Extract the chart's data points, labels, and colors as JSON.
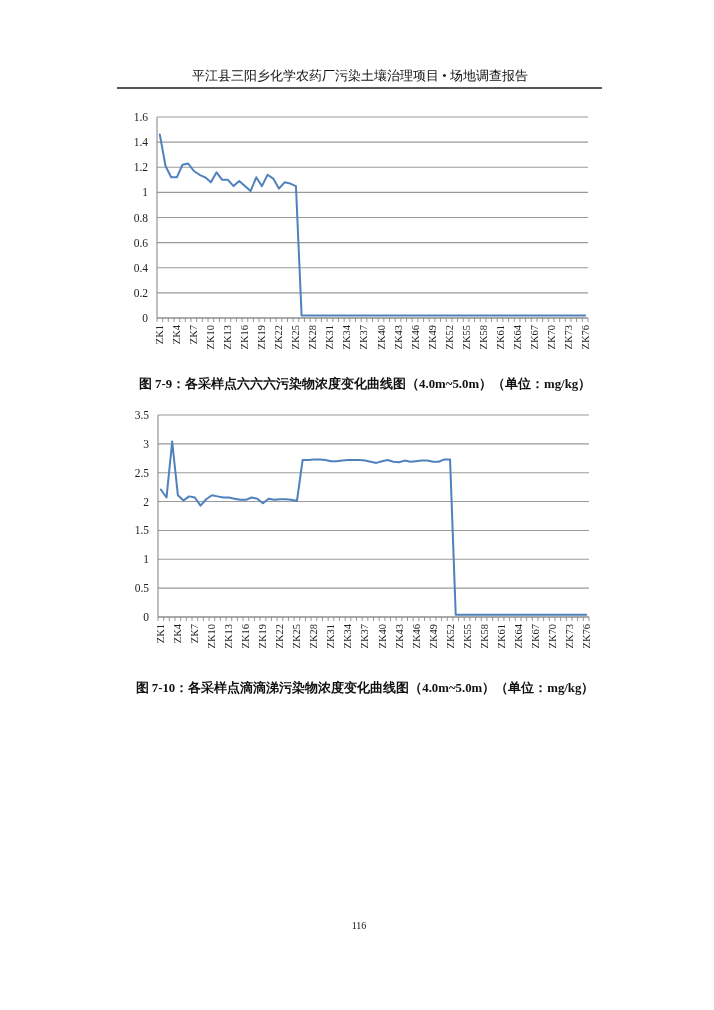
{
  "chart_data": [
    {
      "type": "line",
      "title": "图 7-9：各采样点六六六污染物浓度变化曲线图（4.0m~5.0m）（单位：mg/kg）",
      "annotations": [
        "平江县三阳乡化学农药厂污染土壤治理项目 • 场地调查报告"
      ],
      "categories": [
        "ZK1",
        null,
        null,
        "ZK4",
        null,
        null,
        "ZK7",
        null,
        null,
        "ZK10",
        null,
        null,
        "ZK13",
        null,
        null,
        "ZK16",
        null,
        null,
        "ZK19",
        null,
        null,
        "ZK22",
        null,
        null,
        "ZK25",
        null,
        null,
        "ZK28",
        null,
        null,
        "ZK31",
        null,
        null,
        "ZK34",
        null,
        null,
        "ZK37",
        null,
        null,
        "ZK40",
        null,
        null,
        "ZK43",
        null,
        null,
        "ZK46",
        null,
        null,
        "ZK49",
        null,
        null,
        "ZK52",
        null,
        null,
        "ZK55",
        null,
        null,
        "ZK58",
        null,
        null,
        "ZK61",
        null,
        null,
        "ZK64",
        null,
        null,
        "ZK67",
        null,
        null,
        "ZK70",
        null,
        null,
        "ZK73",
        null,
        null,
        "ZK76"
      ],
      "values": [
        1.46,
        1.21,
        1.12,
        1.12,
        1.22,
        1.23,
        1.17,
        1.14,
        1.12,
        1.08,
        1.16,
        1.1,
        1.1,
        1.05,
        1.09,
        1.05,
        1.01,
        1.12,
        1.05,
        1.14,
        1.11,
        1.03,
        1.08,
        1.07,
        1.05,
        0.02,
        0.02,
        0.02,
        0.02,
        0.02,
        0.02,
        0.02,
        0.02,
        0.02,
        0.02,
        0.02,
        0.02,
        0.02,
        0.02,
        0.02,
        0.02,
        0.02,
        0.02,
        0.02,
        0.02,
        0.02,
        0.02,
        0.02,
        0.02,
        0.02,
        0.02,
        0.02,
        0.02,
        0.02,
        0.02,
        0.02,
        0.02,
        0.02,
        0.02,
        0.02,
        0.02,
        0.02,
        0.02,
        0.02,
        0.02,
        0.02,
        0.02,
        0.02,
        0.02,
        0.02,
        0.02,
        0.02,
        0.02,
        0.02,
        0.02,
        0.02
      ],
      "color": "#4f81bd",
      "ylim": [
        0,
        1.6
      ],
      "yticks": [
        0,
        0.2,
        0.4,
        0.6,
        0.8,
        1,
        1.2,
        1.4,
        1.6
      ],
      "grid": "y"
    },
    {
      "type": "line",
      "title": "图 7-10：各采样点滴滴涕污染物浓度变化曲线图（4.0m~5.0m）（单位：mg/kg）",
      "annotations": [
        "116"
      ],
      "categories": [
        "ZK1",
        null,
        null,
        "ZK4",
        null,
        null,
        "ZK7",
        null,
        null,
        "ZK10",
        null,
        null,
        "ZK13",
        null,
        null,
        "ZK16",
        null,
        null,
        "ZK19",
        null,
        null,
        "ZK22",
        null,
        null,
        "ZK25",
        null,
        null,
        "ZK28",
        null,
        null,
        "ZK31",
        null,
        null,
        "ZK34",
        null,
        null,
        "ZK37",
        null,
        null,
        "ZK40",
        null,
        null,
        "ZK43",
        null,
        null,
        "ZK46",
        null,
        null,
        "ZK49",
        null,
        null,
        "ZK52",
        null,
        null,
        "ZK55",
        null,
        null,
        "ZK58",
        null,
        null,
        "ZK61",
        null,
        null,
        "ZK64",
        null,
        null,
        "ZK67",
        null,
        null,
        "ZK70",
        null,
        null,
        "ZK73",
        null,
        null,
        "ZK76"
      ],
      "values": [
        2.21,
        2.07,
        3.04,
        2.11,
        2.02,
        2.09,
        2.07,
        1.93,
        2.04,
        2.11,
        2.09,
        2.07,
        2.07,
        2.05,
        2.03,
        2.03,
        2.07,
        2.05,
        1.97,
        2.05,
        2.03,
        2.04,
        2.04,
        2.03,
        2.01,
        2.72,
        2.72,
        2.73,
        2.73,
        2.72,
        2.7,
        2.7,
        2.71,
        2.72,
        2.72,
        2.72,
        2.71,
        2.69,
        2.67,
        2.7,
        2.72,
        2.69,
        2.68,
        2.71,
        2.69,
        2.7,
        2.71,
        2.71,
        2.69,
        2.69,
        2.73,
        2.73,
        0.04,
        0.04,
        0.04,
        0.04,
        0.04,
        0.04,
        0.04,
        0.04,
        0.04,
        0.04,
        0.04,
        0.04,
        0.04,
        0.04,
        0.04,
        0.04,
        0.04,
        0.04,
        0.04,
        0.04,
        0.04,
        0.04,
        0.04,
        0.04
      ],
      "color": "#4f81bd",
      "ylim": [
        0,
        3.5
      ],
      "yticks": [
        0,
        0.5,
        1,
        1.5,
        2,
        2.5,
        3,
        3.5
      ],
      "grid": "y"
    }
  ]
}
